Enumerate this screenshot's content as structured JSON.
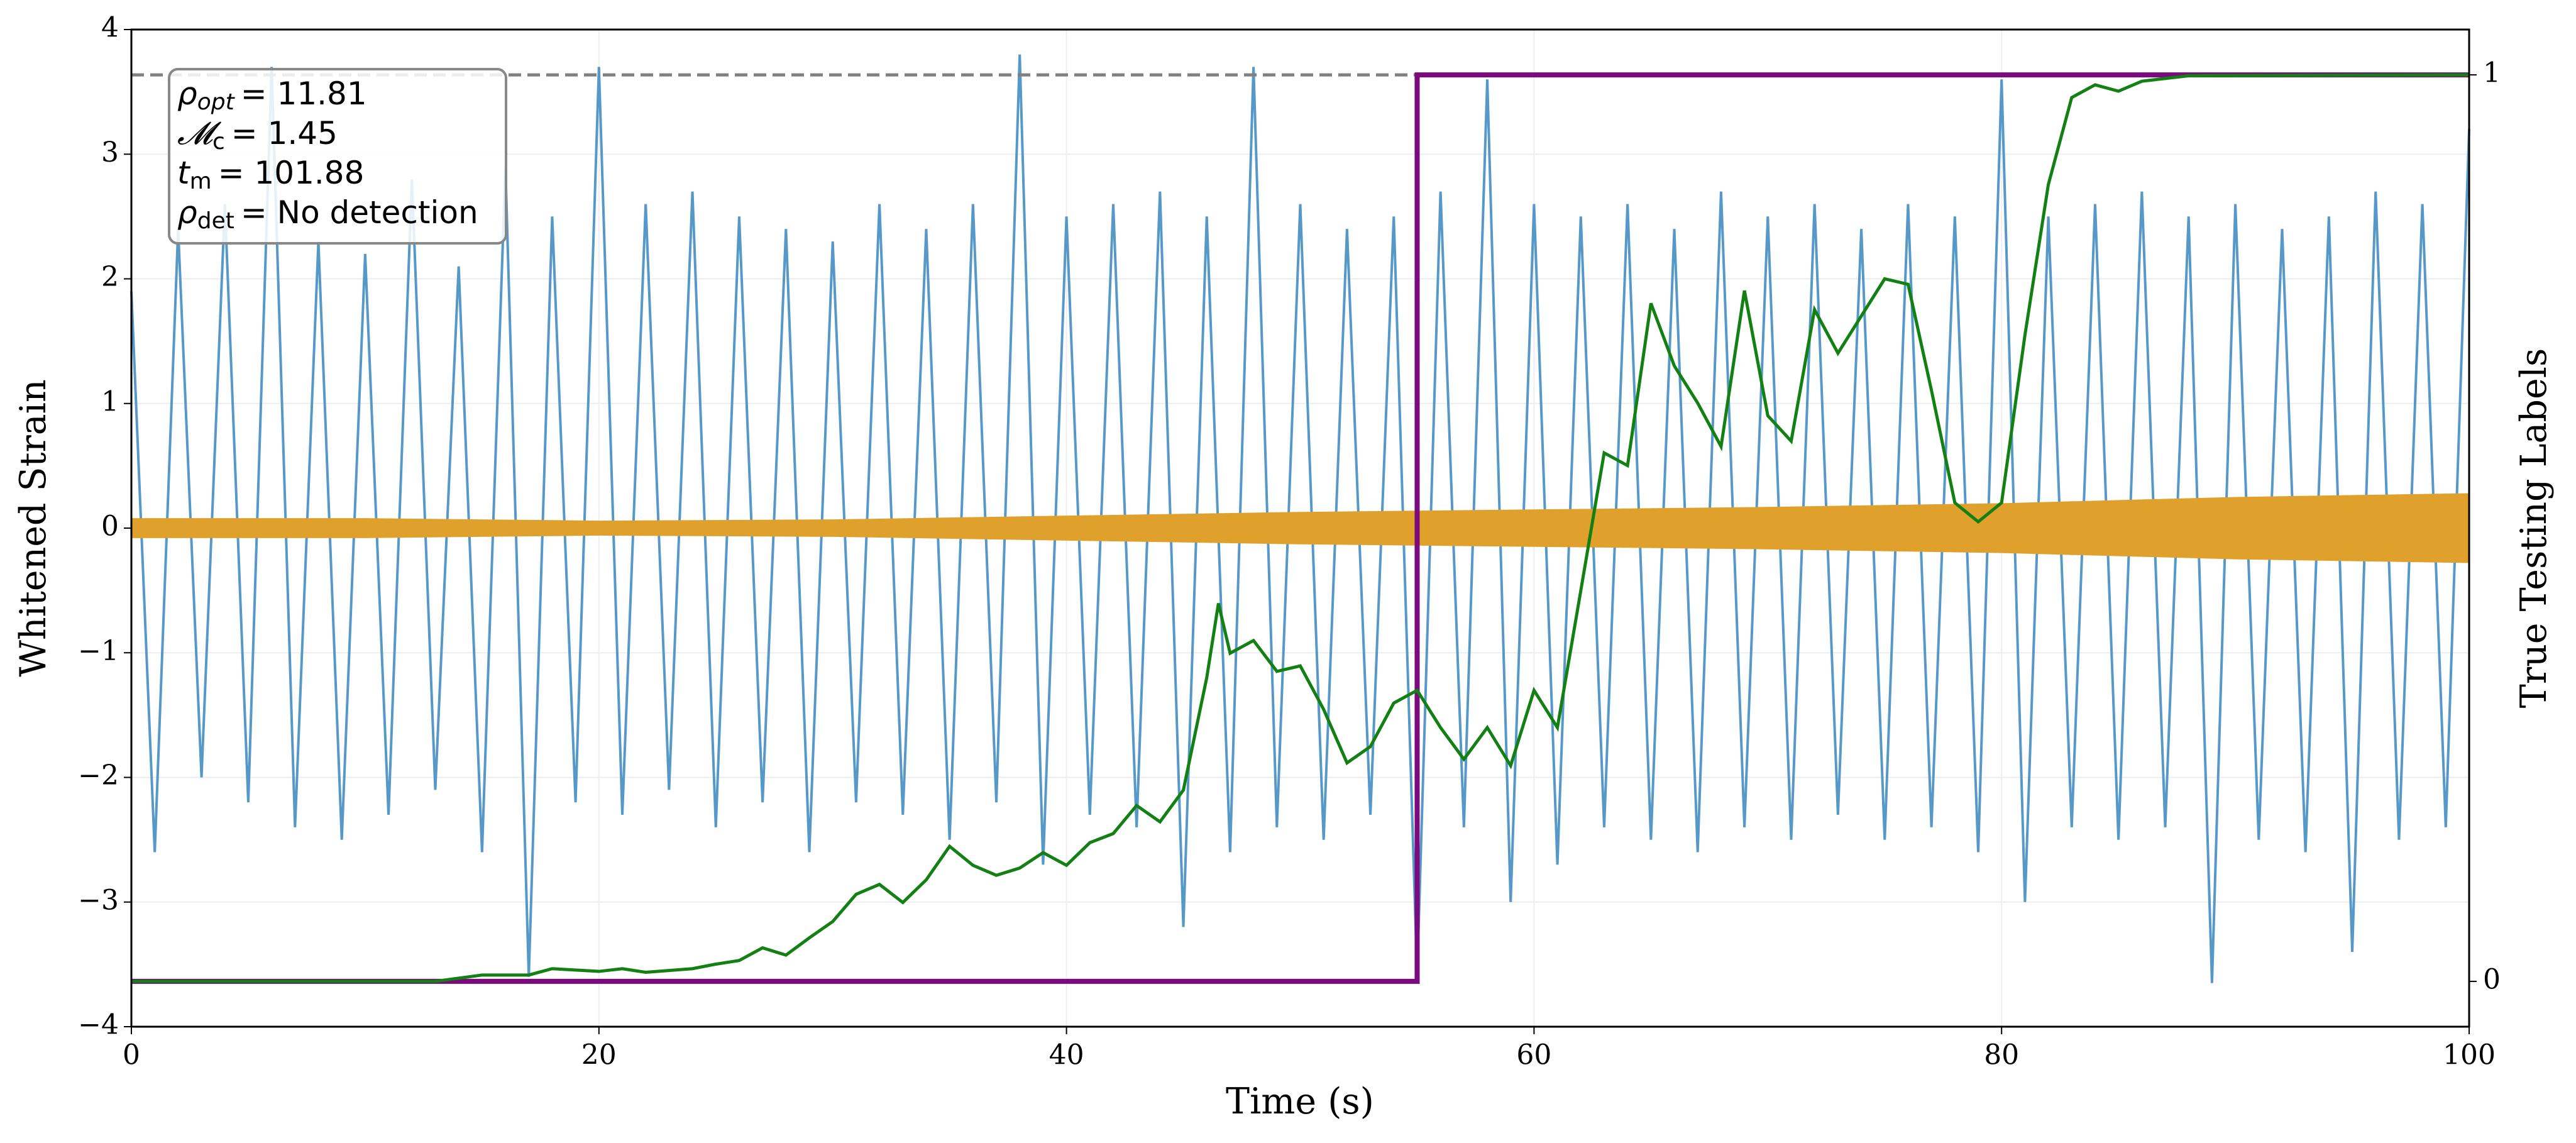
{
  "chart_data": {
    "type": "line",
    "xlabel": "Time (s)",
    "ylabel": "Whitened Strain",
    "y2label": "True Testing Labels",
    "xlim": [
      0,
      100
    ],
    "xticks": [
      0,
      20,
      40,
      60,
      80,
      100
    ],
    "ylim": [
      -4,
      4
    ],
    "yticks": [
      {
        "value": -4,
        "label": "−4"
      },
      {
        "value": -3,
        "label": "−3"
      },
      {
        "value": -2,
        "label": "−2"
      },
      {
        "value": -1,
        "label": "−1"
      },
      0,
      1,
      2,
      3,
      4
    ],
    "y2lim": [
      -0.05,
      1.05
    ],
    "y2ticks": [
      0,
      1
    ],
    "grid": true,
    "reference_line": {
      "value": 1,
      "axis": "y2",
      "color": "#808080"
    },
    "noise": {
      "color": "#5699c8",
      "x": [
        0,
        1,
        2,
        3,
        4,
        5,
        6,
        7,
        8,
        9,
        10,
        11,
        12,
        13,
        14,
        15,
        16,
        17,
        18,
        19,
        20,
        21,
        22,
        23,
        24,
        25,
        26,
        27,
        28,
        29,
        30,
        31,
        32,
        33,
        34,
        35,
        36,
        37,
        38,
        39,
        40,
        41,
        42,
        43,
        44,
        45,
        46,
        47,
        48,
        49,
        50,
        51,
        52,
        53,
        54,
        55,
        56,
        57,
        58,
        59,
        60,
        61,
        62,
        63,
        64,
        65,
        66,
        67,
        68,
        69,
        70,
        71,
        72,
        73,
        74,
        75,
        76,
        77,
        78,
        79,
        80,
        81,
        82,
        83,
        84,
        85,
        86,
        87,
        88,
        89,
        90,
        91,
        92,
        93,
        94,
        95,
        96,
        97,
        98,
        99,
        100
      ],
      "values": [
        1.9,
        -2.6,
        2.4,
        -2.0,
        2.6,
        -2.2,
        3.7,
        -2.4,
        2.3,
        -2.5,
        2.2,
        -2.3,
        2.8,
        -2.1,
        2.1,
        -2.6,
        2.9,
        -3.6,
        2.5,
        -2.2,
        3.7,
        -2.3,
        2.6,
        -2.1,
        2.7,
        -2.4,
        2.5,
        -2.2,
        2.4,
        -2.6,
        2.3,
        -2.2,
        2.6,
        -2.3,
        2.4,
        -2.5,
        2.6,
        -2.2,
        3.8,
        -2.7,
        2.5,
        -2.3,
        2.6,
        -2.4,
        2.7,
        -3.2,
        2.5,
        -2.6,
        3.7,
        -2.4,
        2.6,
        -2.5,
        2.4,
        -2.3,
        2.5,
        -3.6,
        2.7,
        -2.4,
        3.6,
        -3.0,
        2.6,
        -2.7,
        2.5,
        -2.4,
        2.6,
        -2.5,
        2.4,
        -2.6,
        2.7,
        -2.4,
        2.5,
        -2.5,
        2.6,
        -2.3,
        2.4,
        -2.5,
        2.6,
        -2.4,
        2.5,
        -2.6,
        3.6,
        -3.0,
        2.5,
        -2.4,
        2.6,
        -2.5,
        2.7,
        -2.4,
        2.5,
        -3.65,
        2.6,
        -2.5,
        2.4,
        -2.6,
        2.5,
        -3.4,
        2.7,
        -2.5,
        2.6,
        -2.4,
        3.2
      ]
    },
    "signal": {
      "color": "#e0a02c",
      "x": [
        0,
        10,
        20,
        30,
        40,
        50,
        60,
        70,
        80,
        90,
        100
      ],
      "upper": [
        0.08,
        0.08,
        0.06,
        0.07,
        0.1,
        0.13,
        0.15,
        0.17,
        0.2,
        0.25,
        0.28
      ],
      "lower": [
        -0.08,
        -0.08,
        -0.06,
        -0.07,
        -0.1,
        -0.13,
        -0.15,
        -0.17,
        -0.2,
        -0.25,
        -0.28
      ]
    },
    "series": [
      {
        "color": "#7a0a7e",
        "axis": "y2",
        "x": [
          0,
          55,
          55,
          100
        ],
        "values": [
          0,
          0,
          1,
          1
        ]
      },
      {
        "color": "#138013",
        "axis": "y2",
        "x": [
          0,
          13,
          15,
          17,
          18,
          20,
          21,
          22,
          24,
          25,
          26,
          27,
          28,
          29,
          30,
          31,
          32,
          33,
          34,
          35,
          36,
          37,
          38,
          39,
          40,
          41,
          42,
          43,
          44,
          45,
          46,
          46.5,
          47,
          48,
          49,
          50,
          51,
          52,
          53,
          54,
          55,
          56,
          57,
          58,
          59,
          60,
          61,
          62,
          63,
          64,
          65,
          66,
          67,
          68,
          69,
          70,
          71,
          72,
          73,
          74,
          75,
          76,
          77,
          78,
          79,
          80,
          81,
          82,
          83,
          84,
          85,
          86,
          88,
          100
        ],
        "values": [
          0,
          0,
          0.007,
          0.007,
          0.014,
          0.011,
          0.014,
          0.01,
          0.014,
          0.019,
          0.023,
          0.037,
          0.029,
          0.048,
          0.066,
          0.096,
          0.107,
          0.087,
          0.112,
          0.149,
          0.128,
          0.117,
          0.125,
          0.142,
          0.128,
          0.153,
          0.163,
          0.194,
          0.176,
          0.211,
          0.335,
          0.417,
          0.362,
          0.376,
          0.342,
          0.348,
          0.3,
          0.241,
          0.259,
          0.307,
          0.321,
          0.28,
          0.245,
          0.28,
          0.238,
          0.321,
          0.28,
          0.431,
          0.583,
          0.569,
          0.748,
          0.679,
          0.638,
          0.59,
          0.762,
          0.624,
          0.596,
          0.741,
          0.693,
          0.734,
          0.775,
          0.769,
          0.652,
          0.528,
          0.507,
          0.528,
          0.713,
          0.879,
          0.975,
          0.989,
          0.982,
          0.993,
          0.999,
          1
        ]
      }
    ],
    "annotations": [
      {
        "sym": "ρ",
        "sub": "opt",
        "text": "= 11.81"
      },
      {
        "sym": "𝓜",
        "sub": "c",
        "text": "= 1.45"
      },
      {
        "sym": "t",
        "sub": "m",
        "text": "= 101.88"
      },
      {
        "sym": "ρ",
        "sub": "det",
        "text": "= No detection"
      }
    ]
  }
}
